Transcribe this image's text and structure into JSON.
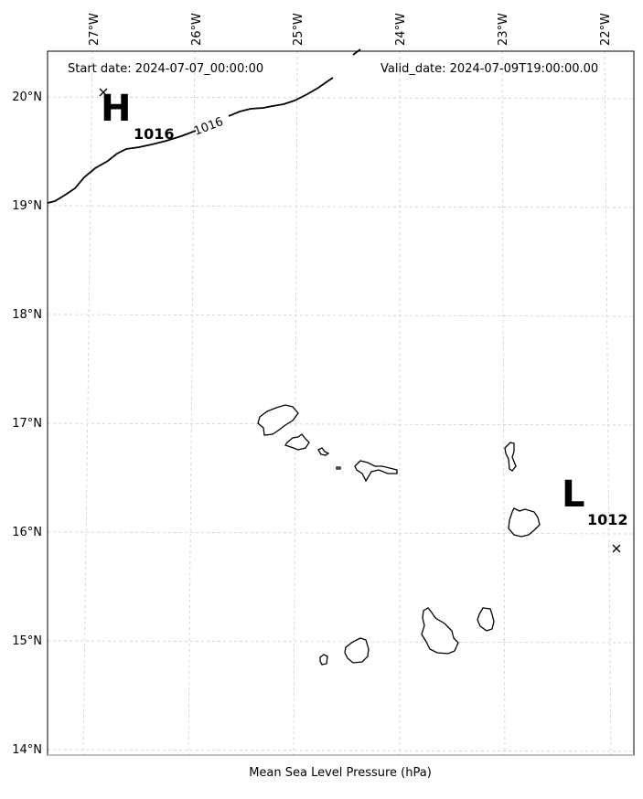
{
  "header": {
    "start_date": "Start date: 2024-07-07_00:00:00",
    "valid_date": "Valid_date: 2024-07-09T19:00:00.00"
  },
  "footer": {
    "caption": "Mean Sea Level Pressure (hPa)"
  },
  "axes": {
    "lon_labels": [
      "27°W",
      "26°W",
      "25°W",
      "24°W",
      "23°W",
      "22°W"
    ],
    "lat_labels": [
      "20°N",
      "19°N",
      "18°N",
      "17°N",
      "16°N",
      "15°N",
      "14°N"
    ]
  },
  "pressure_centers": [
    {
      "type": "H",
      "value": "1016",
      "lon": -26.8,
      "lat": 20.0
    },
    {
      "type": "L",
      "value": "1012",
      "lon": -22.1,
      "lat": 15.85
    }
  ],
  "isobars": [
    {
      "value": "1016",
      "label": "1016"
    }
  ],
  "colors": {
    "grid": "#cccccc",
    "coast": "#000000",
    "background": "#ffffff"
  }
}
